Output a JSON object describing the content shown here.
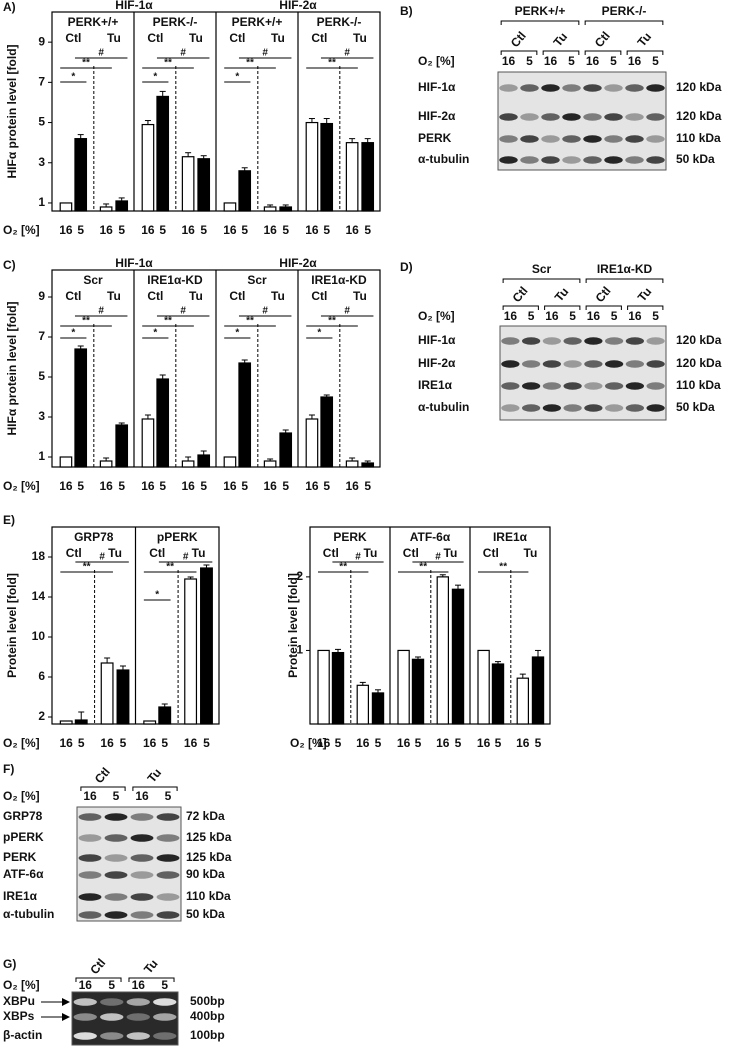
{
  "chart_data": [
    {
      "type": "bar",
      "panel": "A)",
      "titles": [
        "HIF-1α",
        "HIF-2α"
      ],
      "ylabel": "HIFα protein level [fold]",
      "xlabel": "O₂ [%]",
      "ylim": [
        0.6,
        10.5
      ],
      "yticks": [
        1,
        3,
        5,
        7,
        9
      ],
      "log_scale": false,
      "colors": [
        "#ffffff",
        "#000000",
        "#ffffff",
        "#000000"
      ],
      "subpanels": [
        {
          "name": "PERK+/+",
          "conditions": [
            "Ctl",
            "Tu"
          ],
          "categories": [
            "16",
            "5",
            "16",
            "5"
          ],
          "values": [
            1,
            4.2,
            0.8,
            1.1
          ],
          "errors": [
            0,
            0.2,
            0.15,
            0.15
          ],
          "significance": [
            {
              "label": "#",
              "from": 1,
              "to": 3
            },
            {
              "label": "**",
              "from": 0,
              "to": 2
            },
            {
              "label": "*",
              "from": 0,
              "to": 1
            }
          ]
        },
        {
          "name": "PERK-/-",
          "conditions": [
            "Ctl",
            "Tu"
          ],
          "categories": [
            "16",
            "5",
            "16",
            "5"
          ],
          "values": [
            4.9,
            6.3,
            3.3,
            3.2
          ],
          "errors": [
            0.2,
            0.25,
            0.2,
            0.15
          ],
          "significance": [
            {
              "label": "#",
              "from": 1,
              "to": 3
            },
            {
              "label": "**",
              "from": 0,
              "to": 2
            },
            {
              "label": "*",
              "from": 0,
              "to": 1
            }
          ]
        },
        {
          "name": "PERK+/+",
          "conditions": [
            "Ctl",
            "Tu"
          ],
          "categories": [
            "16",
            "5",
            "16",
            "5"
          ],
          "values": [
            1,
            2.6,
            0.8,
            0.8
          ],
          "errors": [
            0,
            0.15,
            0.1,
            0.1
          ],
          "significance": [
            {
              "label": "#",
              "from": 1,
              "to": 3
            },
            {
              "label": "**",
              "from": 0,
              "to": 2
            },
            {
              "label": "*",
              "from": 0,
              "to": 1
            }
          ]
        },
        {
          "name": "PERK-/-",
          "conditions": [
            "Ctl",
            "Tu"
          ],
          "categories": [
            "16",
            "5",
            "16",
            "5"
          ],
          "values": [
            5.0,
            4.95,
            4.0,
            4.0
          ],
          "errors": [
            0.2,
            0.25,
            0.2,
            0.2
          ],
          "significance": [
            {
              "label": "#",
              "from": 1,
              "to": 3
            },
            {
              "label": "**",
              "from": 0,
              "to": 2
            }
          ]
        }
      ]
    },
    {
      "type": "bar",
      "panel": "C)",
      "titles": [
        "HIF-1α",
        "HIF-2α"
      ],
      "ylabel": "HIFα protein level [fold]",
      "xlabel": "O₂ [%]",
      "ylim": [
        0.5,
        10.35
      ],
      "yticks": [
        1,
        3,
        5,
        7,
        9
      ],
      "log_scale": false,
      "colors": [
        "#ffffff",
        "#000000",
        "#ffffff",
        "#000000"
      ],
      "subpanels": [
        {
          "name": "Scr",
          "conditions": [
            "Ctl",
            "Tu"
          ],
          "categories": [
            "16",
            "5",
            "16",
            "5"
          ],
          "values": [
            1,
            6.4,
            0.8,
            2.6
          ],
          "errors": [
            0,
            0.15,
            0.15,
            0.1
          ],
          "significance": [
            {
              "label": "#",
              "from": 1,
              "to": 3
            },
            {
              "label": "**",
              "from": 0,
              "to": 2
            },
            {
              "label": "*",
              "from": 0,
              "to": 1
            }
          ]
        },
        {
          "name": "IRE1α-KD",
          "conditions": [
            "Ctl",
            "Tu"
          ],
          "categories": [
            "16",
            "5",
            "16",
            "5"
          ],
          "values": [
            2.9,
            4.9,
            0.8,
            1.1
          ],
          "errors": [
            0.2,
            0.2,
            0.2,
            0.2
          ],
          "significance": [
            {
              "label": "#",
              "from": 1,
              "to": 3
            },
            {
              "label": "**",
              "from": 0,
              "to": 2
            },
            {
              "label": "*",
              "from": 0,
              "to": 1
            }
          ]
        },
        {
          "name": "Scr",
          "conditions": [
            "Ctl",
            "Tu"
          ],
          "categories": [
            "16",
            "5",
            "16",
            "5"
          ],
          "values": [
            1,
            5.7,
            0.8,
            2.2
          ],
          "errors": [
            0,
            0.15,
            0.1,
            0.15
          ],
          "significance": [
            {
              "label": "#",
              "from": 1,
              "to": 3
            },
            {
              "label": "**",
              "from": 0,
              "to": 2
            },
            {
              "label": "*",
              "from": 0,
              "to": 1
            }
          ]
        },
        {
          "name": "IRE1α-KD",
          "conditions": [
            "Ctl",
            "Tu"
          ],
          "categories": [
            "16",
            "5",
            "16",
            "5"
          ],
          "values": [
            2.9,
            4.0,
            0.8,
            0.7
          ],
          "errors": [
            0.2,
            0.1,
            0.15,
            0.1
          ],
          "significance": [
            {
              "label": "#",
              "from": 1,
              "to": 3
            },
            {
              "label": "**",
              "from": 0,
              "to": 2
            },
            {
              "label": "*",
              "from": 0,
              "to": 1
            }
          ]
        }
      ]
    },
    {
      "type": "bar",
      "panel": "E)",
      "ylabel": "Protein level [fold]",
      "xlabel": "O₂ [%]",
      "ylim": [
        1.3,
        21
      ],
      "yticks": [
        2,
        6,
        10,
        14,
        18
      ],
      "log_scale": false,
      "colors": [
        "#ffffff",
        "#000000",
        "#ffffff",
        "#000000"
      ],
      "subpanels": [
        {
          "name": "GRP78",
          "conditions": [
            "Ctl",
            "Tu"
          ],
          "categories": [
            "16",
            "5",
            "16",
            "5"
          ],
          "values": [
            1.6,
            1.7,
            7.4,
            6.7
          ],
          "errors": [
            0,
            0.8,
            0.5,
            0.4
          ],
          "significance": [
            {
              "label": "#",
              "from": 1,
              "to": 3
            },
            {
              "label": "**",
              "from": 0,
              "to": 2
            }
          ]
        },
        {
          "name": "pPERK",
          "conditions": [
            "Ctl",
            "Tu"
          ],
          "categories": [
            "16",
            "5",
            "16",
            "5"
          ],
          "values": [
            1.6,
            3.0,
            15.8,
            16.9
          ],
          "errors": [
            0,
            0.3,
            0.2,
            0.3
          ],
          "significance": [
            {
              "label": "#",
              "from": 1,
              "to": 3
            },
            {
              "label": "**",
              "from": 0,
              "to": 2
            },
            {
              "label": "*",
              "from": 0,
              "to": 1
            }
          ]
        }
      ]
    },
    {
      "type": "bar",
      "ylabel": "Protein level [fold]",
      "xlabel": "O₂ [%]",
      "ylim": [
        0.5,
        3.2
      ],
      "yticks": [
        1,
        2
      ],
      "log_scale": true,
      "colors": [
        "#ffffff",
        "#000000",
        "#ffffff",
        "#000000"
      ],
      "subpanels": [
        {
          "name": "PERK",
          "conditions": [
            "Ctl",
            "Tu"
          ],
          "categories": [
            "16",
            "5",
            "16",
            "5"
          ],
          "values": [
            1,
            0.98,
            0.72,
            0.67
          ],
          "errors": [
            0,
            0.03,
            0.02,
            0.02
          ],
          "significance": [
            {
              "label": "#",
              "from": 1,
              "to": 3
            },
            {
              "label": "**",
              "from": 0,
              "to": 2
            }
          ]
        },
        {
          "name": "ATF-6α",
          "conditions": [
            "Ctl",
            "Tu"
          ],
          "categories": [
            "16",
            "5",
            "16",
            "5"
          ],
          "values": [
            1,
            0.92,
            2.0,
            1.78
          ],
          "errors": [
            0,
            0.02,
            0.04,
            0.07
          ],
          "significance": [
            {
              "label": "#",
              "from": 1,
              "to": 3
            },
            {
              "label": "**",
              "from": 0,
              "to": 2
            }
          ]
        },
        {
          "name": "IRE1α",
          "conditions": [
            "Ctl",
            "Tu"
          ],
          "categories": [
            "16",
            "5",
            "16",
            "5"
          ],
          "values": [
            1,
            0.88,
            0.77,
            0.94
          ],
          "errors": [
            0,
            0.02,
            0.03,
            0.06
          ],
          "significance": [
            {
              "label": "**",
              "from": 0,
              "to": 2
            }
          ]
        }
      ]
    }
  ],
  "blots": [
    {
      "panel": "B)",
      "groups": [
        "PERK+/+",
        "PERK-/-"
      ],
      "conditions": [
        "Ctl",
        "Tu",
        "Ctl",
        "Tu"
      ],
      "lane_label": "O₂ [%]",
      "lanes": [
        "16",
        "5",
        "16",
        "5",
        "16",
        "5",
        "16",
        "5"
      ],
      "rows": [
        {
          "name": "HIF-1α",
          "size": "120 kDa"
        },
        {
          "name": "HIF-2α",
          "size": "120 kDa"
        },
        {
          "name": "PERK",
          "size": "110 kDa"
        },
        {
          "name": "α-tubulin",
          "size": "50 kDa"
        }
      ]
    },
    {
      "panel": "D)",
      "groups": [
        "Scr",
        "IRE1α-KD"
      ],
      "conditions": [
        "Ctl",
        "Tu",
        "Ctl",
        "Tu"
      ],
      "lane_label": "O₂ [%]",
      "lanes": [
        "16",
        "5",
        "16",
        "5",
        "16",
        "5",
        "16",
        "5"
      ],
      "rows": [
        {
          "name": "HIF-1α",
          "size": "120 kDa"
        },
        {
          "name": "HIF-2α",
          "size": "120 kDa"
        },
        {
          "name": "IRE1α",
          "size": "110 kDa"
        },
        {
          "name": "α-tubulin",
          "size": "50 kDa"
        }
      ]
    },
    {
      "panel": "F)",
      "conditions": [
        "Ctl",
        "Tu"
      ],
      "lane_label": "O₂ [%]",
      "lanes": [
        "16",
        "5",
        "16",
        "5"
      ],
      "rows": [
        {
          "name": "GRP78",
          "size": "72 kDa"
        },
        {
          "name": "pPERK",
          "size": "125 kDa"
        },
        {
          "name": "PERK",
          "size": "125 kDa"
        },
        {
          "name": "ATF-6α",
          "size": "90 kDa"
        },
        {
          "name": "IRE1α",
          "size": "110 kDa"
        },
        {
          "name": "α-tubulin",
          "size": "50 kDa"
        }
      ]
    },
    {
      "panel": "G)",
      "conditions": [
        "Ctl",
        "Tu"
      ],
      "lane_label": "O₂ [%]",
      "lanes": [
        "16",
        "5",
        "16",
        "5"
      ],
      "rows": [
        {
          "name": "XBPu",
          "size": "500bp"
        },
        {
          "name": "XBPs",
          "size": "400bp"
        },
        {
          "name": "β-actin",
          "size": "100bp"
        }
      ]
    }
  ]
}
